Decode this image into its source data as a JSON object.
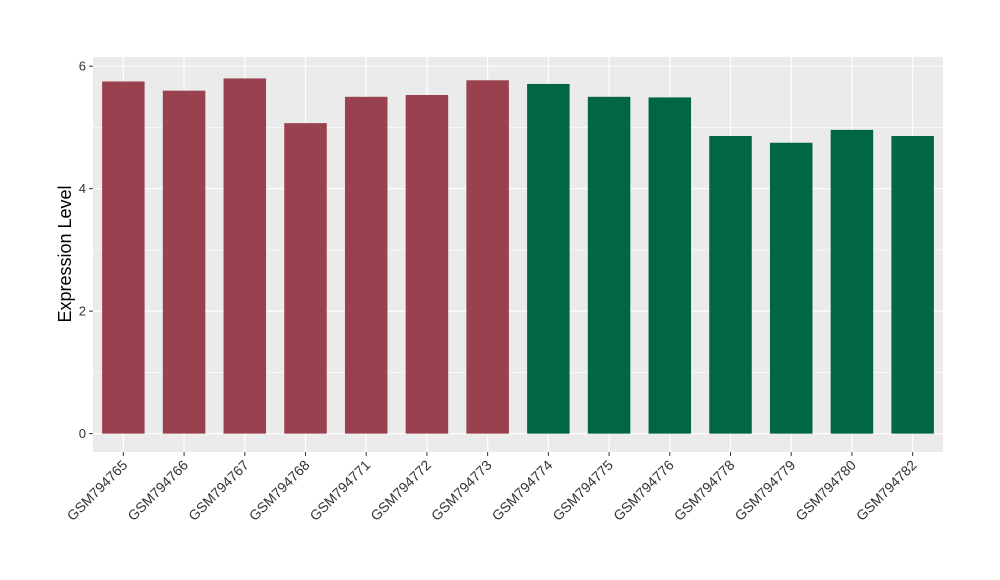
{
  "chart_data": {
    "type": "bar",
    "title": "",
    "xlabel": "",
    "ylabel": "Expression Level",
    "ylim": [
      -0.3,
      6.15
    ],
    "yticks": [
      0,
      2,
      4,
      6
    ],
    "grid": true,
    "legend": "none",
    "panel_background": "#EBEBEB",
    "grid_color": "#FFFFFF",
    "categories": [
      "GSM794765",
      "GSM794766",
      "GSM794767",
      "GSM794768",
      "GSM794771",
      "GSM794772",
      "GSM794773",
      "GSM794774",
      "GSM794775",
      "GSM794776",
      "GSM794778",
      "GSM794779",
      "GSM794780",
      "GSM794782"
    ],
    "values": [
      5.75,
      5.6,
      5.8,
      5.07,
      5.5,
      5.53,
      5.77,
      5.71,
      5.5,
      5.49,
      4.86,
      4.75,
      4.96,
      4.86
    ],
    "bar_colors": [
      "#99414E",
      "#99414E",
      "#99414E",
      "#99414E",
      "#99414E",
      "#99414E",
      "#99414E",
      "#006644",
      "#006644",
      "#006644",
      "#006644",
      "#006644",
      "#006644",
      "#006644"
    ]
  }
}
